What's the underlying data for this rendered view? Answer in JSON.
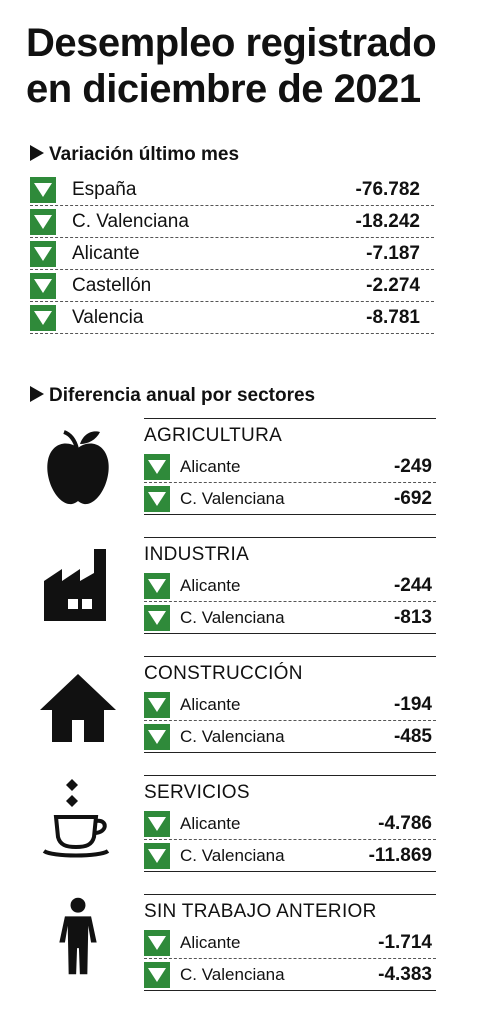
{
  "title": {
    "line1": "Desempleo registrado",
    "line2": "en diciembre de 2021"
  },
  "variacion": {
    "heading": "Variación último mes",
    "rows": [
      {
        "label": "España",
        "value": "-76.782"
      },
      {
        "label": "C. Valenciana",
        "value": "-18.242"
      },
      {
        "label": "Alicante",
        "value": "-7.187"
      },
      {
        "label": "Castellón",
        "value": "-2.274"
      },
      {
        "label": "Valencia",
        "value": "-8.781"
      }
    ]
  },
  "sectores": {
    "heading": "Diferencia anual por sectores",
    "items": [
      {
        "name": "AGRICULTURA",
        "icon": "apple-icon",
        "rows": [
          {
            "label": "Alicante",
            "value": "-249"
          },
          {
            "label": "C. Valenciana",
            "value": "-692"
          }
        ]
      },
      {
        "name": "INDUSTRIA",
        "icon": "factory-icon",
        "rows": [
          {
            "label": "Alicante",
            "value": "-244"
          },
          {
            "label": "C. Valenciana",
            "value": "-813"
          }
        ]
      },
      {
        "name": "CONSTRUCCIÓN",
        "icon": "house-icon",
        "rows": [
          {
            "label": "Alicante",
            "value": "-194"
          },
          {
            "label": "C. Valenciana",
            "value": "-485"
          }
        ]
      },
      {
        "name": "SERVICIOS",
        "icon": "coffee-cup-icon",
        "rows": [
          {
            "label": "Alicante",
            "value": "-4.786"
          },
          {
            "label": "C. Valenciana",
            "value": "-11.869"
          }
        ]
      },
      {
        "name": "SIN TRABAJO ANTERIOR",
        "icon": "person-icon",
        "rows": [
          {
            "label": "Alicante",
            "value": "-1.714"
          },
          {
            "label": "C. Valenciana",
            "value": "-4.383"
          }
        ]
      }
    ]
  },
  "colors": {
    "accent": "#2f8a3a",
    "text": "#111111"
  }
}
